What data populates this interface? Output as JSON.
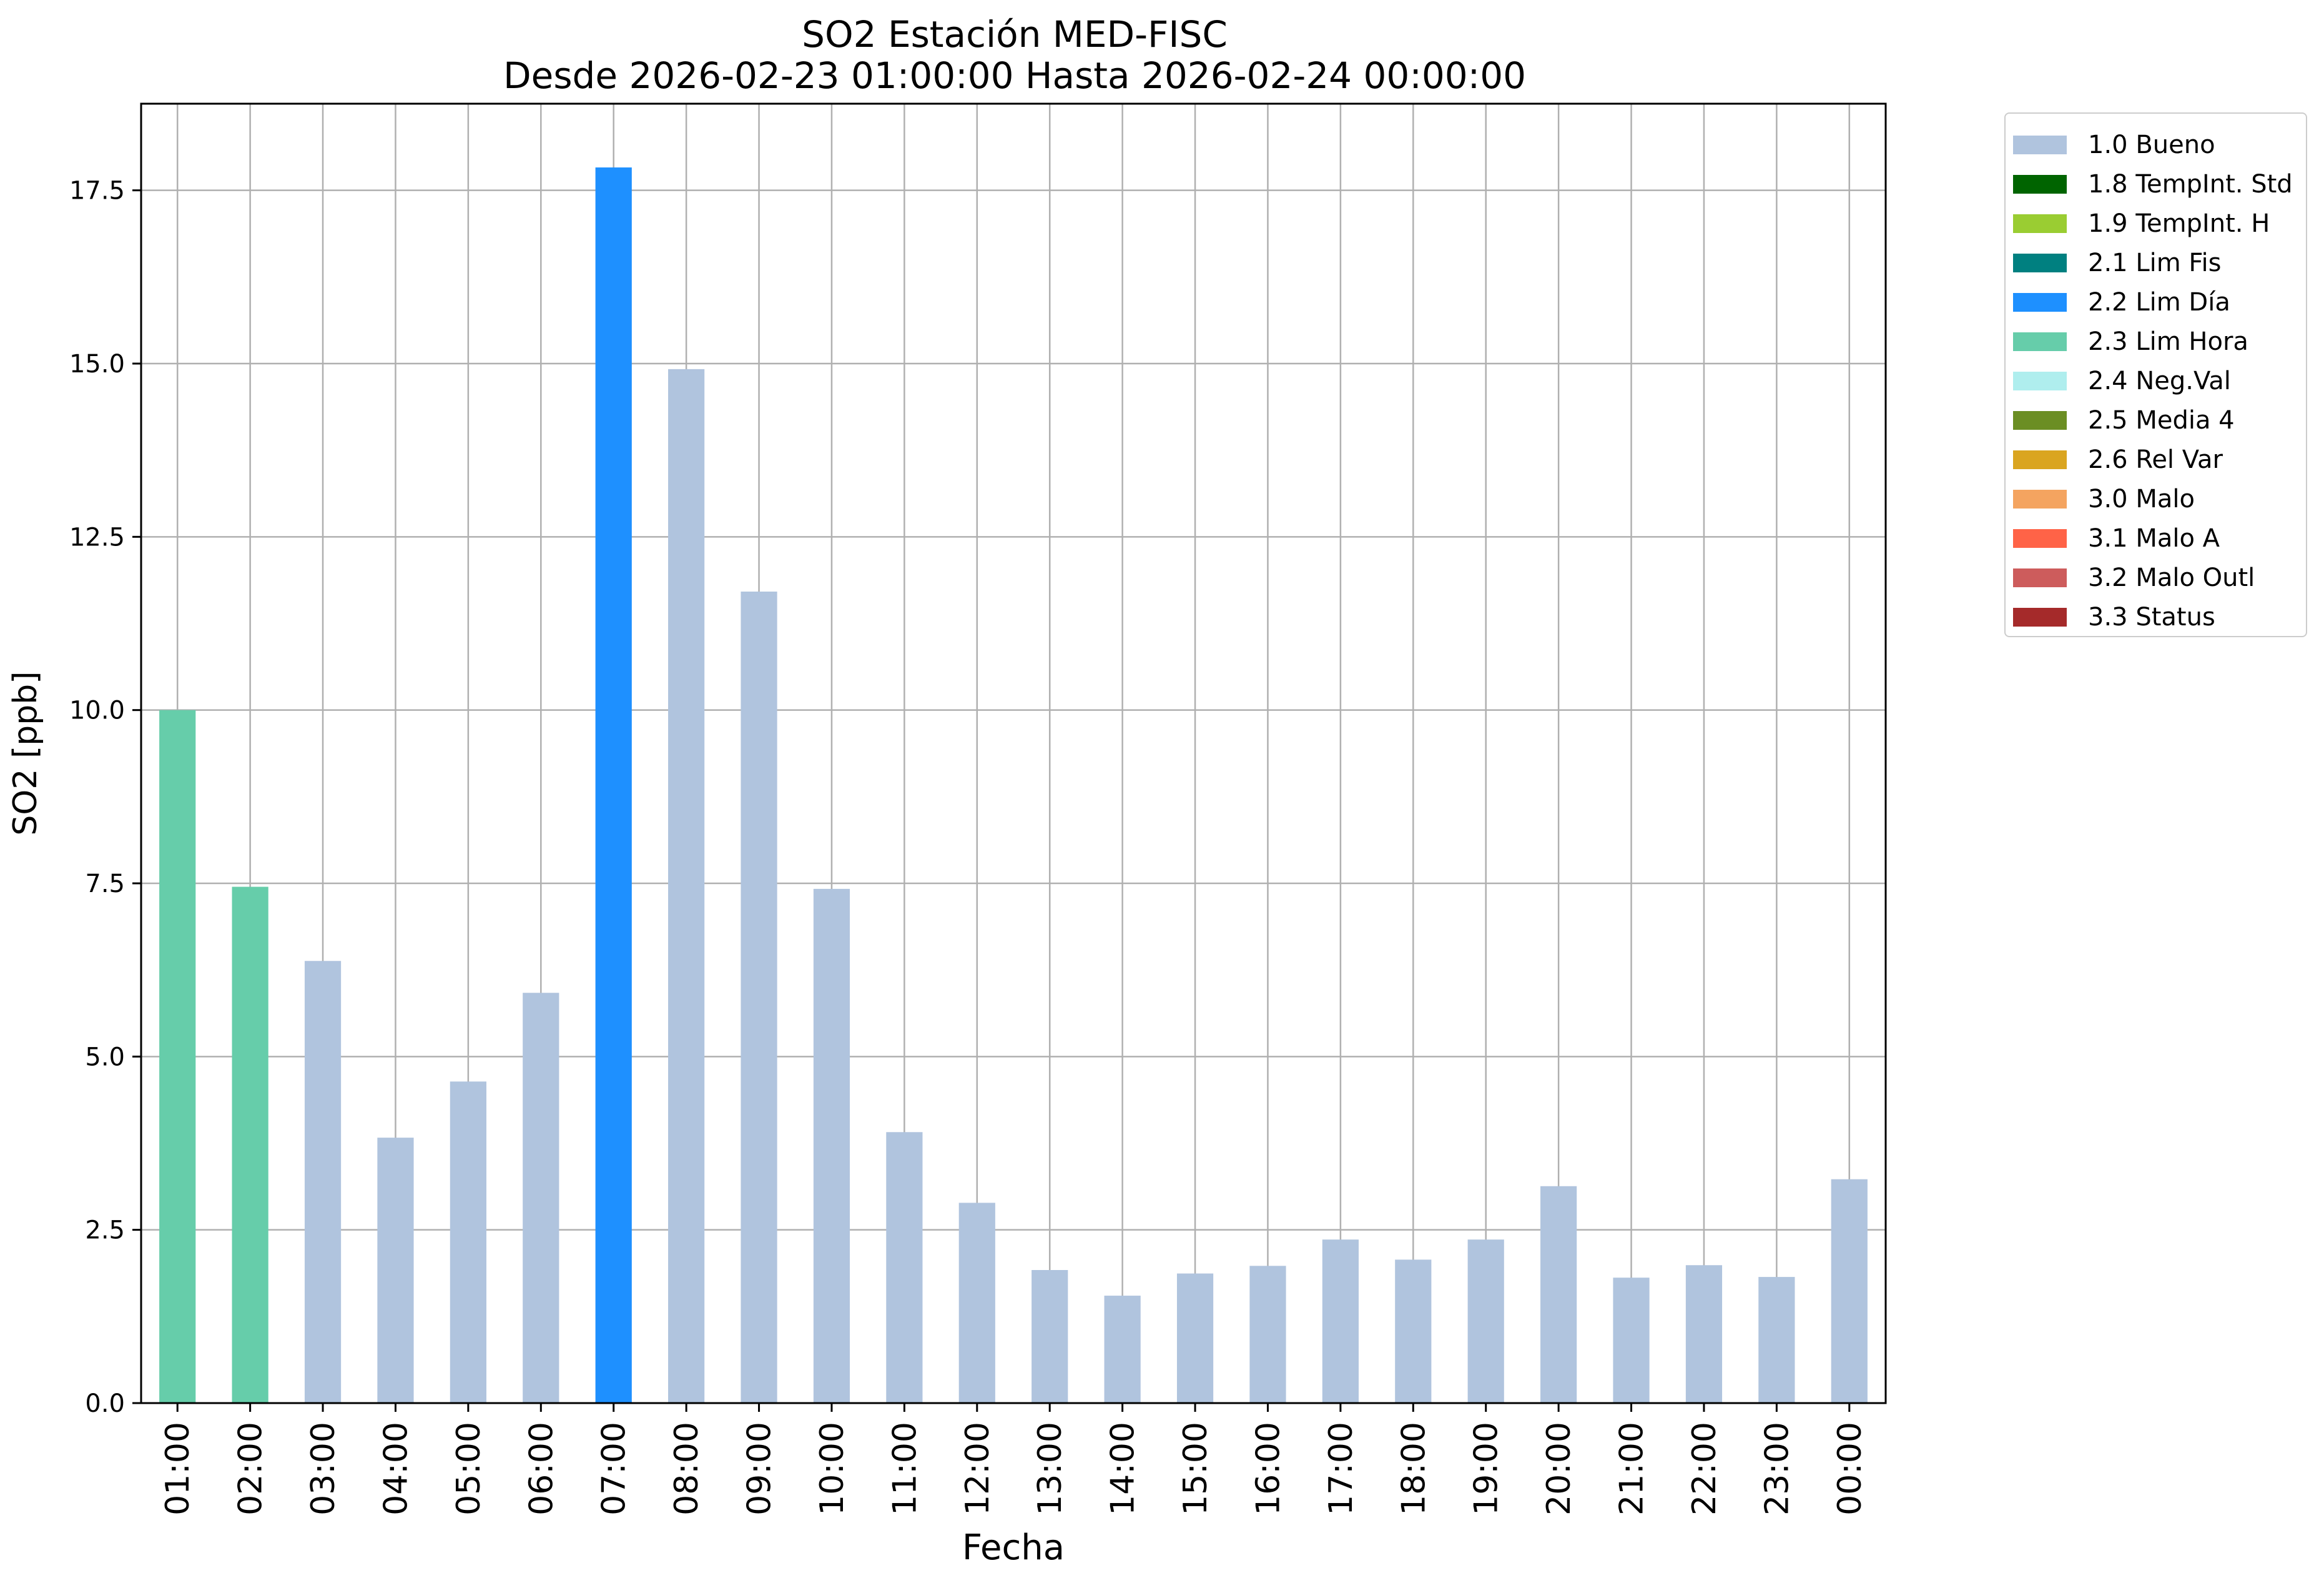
{
  "chart_data": {
    "type": "bar",
    "title": "SO2 Estación MED-FISC",
    "subtitle": "Desde 2026-02-23 01:00:00 Hasta 2026-02-24 00:00:00",
    "xlabel": "Fecha",
    "ylabel": "SO2 [ppb]",
    "ylim": [
      0,
      18.75
    ],
    "yticks": [
      "0.0",
      "2.5",
      "5.0",
      "7.5",
      "10.0",
      "12.5",
      "15.0",
      "17.5"
    ],
    "grid": true,
    "legend_position": "outside-right",
    "categories": [
      "01:00",
      "02:00",
      "03:00",
      "04:00",
      "05:00",
      "06:00",
      "07:00",
      "08:00",
      "09:00",
      "10:00",
      "11:00",
      "12:00",
      "13:00",
      "14:00",
      "15:00",
      "16:00",
      "17:00",
      "18:00",
      "19:00",
      "20:00",
      "21:00",
      "22:00",
      "23:00",
      "00:00"
    ],
    "values": [
      10.0,
      7.45,
      6.38,
      3.83,
      4.64,
      5.92,
      17.83,
      14.92,
      11.71,
      7.42,
      3.91,
      2.89,
      1.92,
      1.55,
      1.87,
      1.98,
      2.36,
      2.07,
      2.36,
      3.13,
      1.81,
      1.99,
      1.82,
      3.23
    ],
    "flags": [
      "2.3",
      "2.3",
      "1.0",
      "1.0",
      "1.0",
      "1.0",
      "2.2",
      "1.0",
      "1.0",
      "1.0",
      "1.0",
      "1.0",
      "1.0",
      "1.0",
      "1.0",
      "1.0",
      "1.0",
      "1.0",
      "1.0",
      "1.0",
      "1.0",
      "1.0",
      "1.0",
      "1.0"
    ],
    "legend": [
      {
        "label": "1.0 Bueno",
        "color": "#b0c4de"
      },
      {
        "label": "1.8 TempInt. Std",
        "color": "#006400"
      },
      {
        "label": "1.9 TempInt. H",
        "color": "#9acd32"
      },
      {
        "label": "2.1 Lim Fis",
        "color": "#008080"
      },
      {
        "label": "2.2 Lim Día",
        "color": "#1e90ff"
      },
      {
        "label": "2.3 Lim Hora",
        "color": "#66cdaa"
      },
      {
        "label": "2.4 Neg.Val",
        "color": "#afeeee"
      },
      {
        "label": "2.5 Media 4",
        "color": "#6b8e23"
      },
      {
        "label": "2.6 Rel Var",
        "color": "#daa520"
      },
      {
        "label": "3.0 Malo",
        "color": "#f4a460"
      },
      {
        "label": "3.1 Malo A",
        "color": "#ff6347"
      },
      {
        "label": "3.2 Malo Outl",
        "color": "#cd5c5c"
      },
      {
        "label": "3.3 Status",
        "color": "#a52a2a"
      }
    ]
  }
}
